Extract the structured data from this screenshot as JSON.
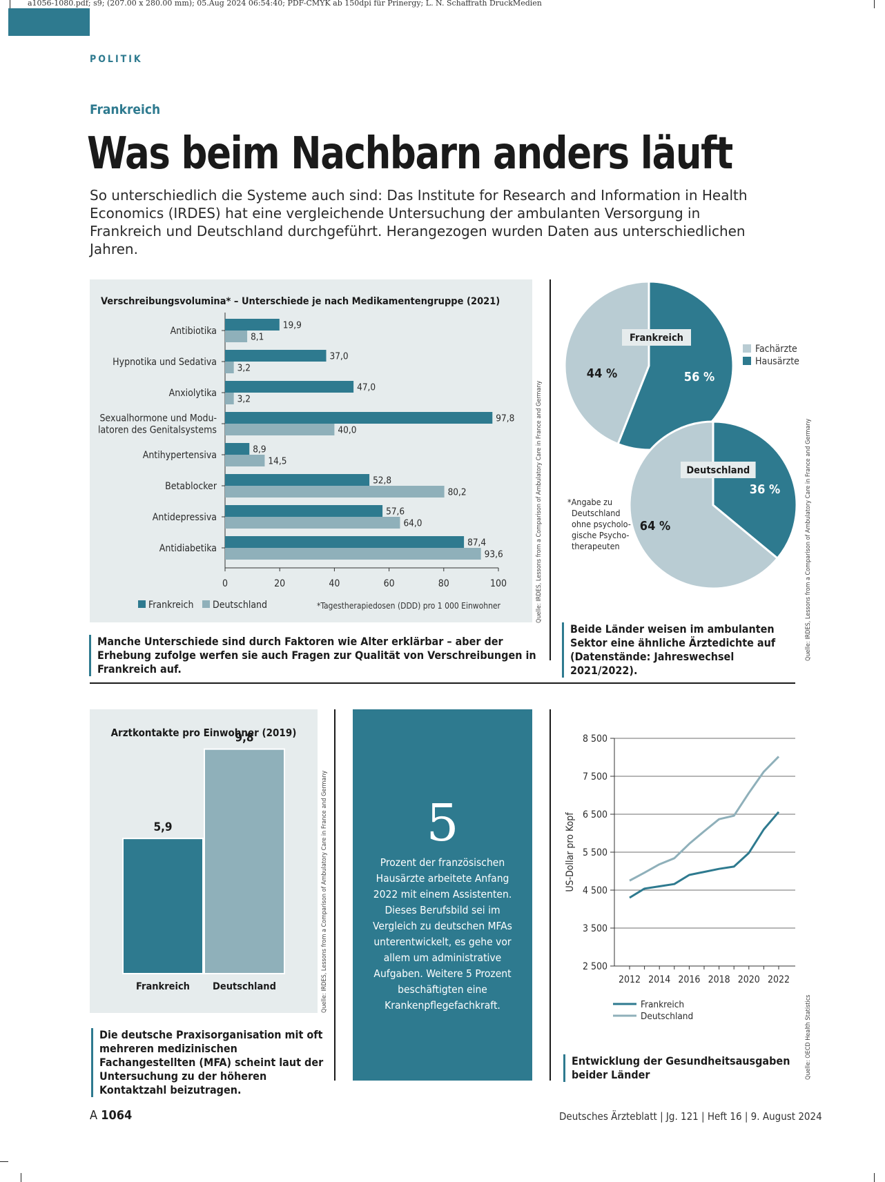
{
  "print_line": "a1056-1080.pdf; s9; (207.00 x 280.00 mm); 05.Aug 2024 06:54:40; PDF-CMYK ab 150dpi für Prinergy; L. N. Schaffrath DruckMedien",
  "section": "POLITIK",
  "kicker": "Frankreich",
  "headline": "Was beim Nachbarn anders läuft",
  "lead": "So unterschiedlich die Systeme auch sind: Das Institute for Research and Information in Health Economics (IRDES) hat eine vergleichende Untersuchung der ambulanten Versorgung in Frankreich und Deutschland durchgeführt. Herangezogen wurden Daten aus unterschiedlichen Jahren.",
  "colors": {
    "teal": "#2e7a8f",
    "light_teal": "#8fb0ba",
    "pie_light": "#b9ccd3",
    "panel": "#e6eced"
  },
  "chart_data": [
    {
      "type": "bar",
      "orientation": "horizontal",
      "title": "Verschreibungsvolumina* – Unterschiede je nach Medikamentengruppe (2021)",
      "categories": [
        "Antibiotika",
        "Hypnotika und Sedativa",
        "Anxiolytika",
        "Sexualhormone und Modu-\nlatoren des Genitalsystems",
        "Antihypertensiva",
        "Betablocker",
        "Antidepressiva",
        "Antidiabetika"
      ],
      "series": [
        {
          "name": "Frankreich",
          "values": [
            19.9,
            37.0,
            47.0,
            97.8,
            8.9,
            52.8,
            57.6,
            87.4
          ],
          "labels": [
            "19,9",
            "37,0",
            "47,0",
            "97,8",
            "8,9",
            "52,8",
            "57,6",
            "87,4"
          ],
          "color": "#2e7a8f"
        },
        {
          "name": "Deutschland",
          "values": [
            8.1,
            3.2,
            3.2,
            40.0,
            14.5,
            80.2,
            64.0,
            93.6
          ],
          "labels": [
            "8,1",
            "3,2",
            "3,2",
            "40,0",
            "14,5",
            "80,2",
            "64,0",
            "93,6"
          ],
          "color": "#8fb0ba"
        }
      ],
      "xlim": [
        0,
        100
      ],
      "xticks": [
        "0",
        "20",
        "40",
        "60",
        "80",
        "100"
      ],
      "note": "*Tagestherapiedosen (DDD) pro 1 000 Einwohner",
      "legend": "bottom-left",
      "source": "Quelle: IRDES, Lessons from a Comparison of Ambulatory Care in France and Germany",
      "caption": "Manche Unterschiede sind durch Faktoren wie Alter erklärbar – aber der Erhebung zufolge werfen sie auch Fragen zur Qualität von Verschreibungen in Frankreich auf."
    },
    {
      "type": "pie",
      "pies": [
        {
          "name": "Frankreich",
          "slices": [
            {
              "label": "Hausärzte",
              "value": 56,
              "text": "56 %"
            },
            {
              "label": "Fachärzte",
              "value": 44,
              "text": "44 %"
            }
          ]
        },
        {
          "name": "Deutschland",
          "slices": [
            {
              "label": "Hausärzte",
              "value": 36,
              "text": "36 %"
            },
            {
              "label": "Fachärzte",
              "value": 64,
              "text": "64 %"
            }
          ]
        }
      ],
      "legend": [
        "Fachärzte",
        "Hausärzte"
      ],
      "footnote": "*Angabe zu\nDeutschland\nohne psycholo-\ngische Psycho-\ntherapeuten",
      "source": "Quelle: IRDES, Lessons from a Comparison of Ambulatory Care in France and Germany",
      "caption": "Beide Länder weisen im ambulanten Sektor eine ähnliche Ärztedichte auf (Datenstände: Jahreswechsel 2021/2022)."
    },
    {
      "type": "bar",
      "title": "Arztkontakte pro Einwohner (2019)",
      "categories": [
        "Frankreich",
        "Deutschland"
      ],
      "values": [
        5.9,
        9.8
      ],
      "labels": [
        "5,9",
        "9,8"
      ],
      "source": "Quelle: IRDES, Lessons from a Comparison of Ambulatory Care in France and Germany",
      "caption": "Die deutsche Praxisorganisation mit oft mehreren medizinischen Fachangestellten (MFA) scheint laut der Untersuchung zu der höheren Kontaktzahl beizutragen."
    },
    {
      "type": "line",
      "ylabel": "US-Dollar pro Kopf",
      "x": [
        2012,
        2013,
        2014,
        2015,
        2016,
        2017,
        2018,
        2019,
        2020,
        2021,
        2022
      ],
      "series": [
        {
          "name": "Frankreich",
          "values": [
            4300,
            4540,
            4600,
            4660,
            4900,
            4980,
            5060,
            5120,
            5480,
            6100,
            6560
          ],
          "color": "#2e7a8f"
        },
        {
          "name": "Deutschland",
          "values": [
            4750,
            4960,
            5180,
            5340,
            5720,
            6050,
            6370,
            6460,
            7060,
            7620,
            8020
          ],
          "color": "#8fb0ba"
        }
      ],
      "ylim": [
        2500,
        8500
      ],
      "yticks": [
        "8 500",
        "7 500",
        "6 500",
        "5 500",
        "4 500",
        "3 500",
        "2 500"
      ],
      "xticks": [
        "2012",
        "2014",
        "2016",
        "2018",
        "2020",
        "2022"
      ],
      "grid": true,
      "legend": "bottom",
      "source": "Quelle: OECD Health Statistics",
      "caption": "Entwicklung der Gesundheitsausgaben beider Länder"
    }
  ],
  "callout": {
    "number": "5",
    "text": "Prozent der französischen Hausärzte arbeitete Anfang 2022 mit einem Assistenten. Dieses Berufsbild sei im Vergleich zu deutschen MFAs unterentwickelt, es gehe vor allem um administrative Aufgaben. Weitere 5 Prozent beschäftigten eine Krankenpflegefachkraft."
  },
  "footer": {
    "page_prefix": "A",
    "page_number": "1064",
    "journal": "Deutsches Ärzteblatt | Jg. 121 | Heft 16 | 9. August 2024"
  }
}
